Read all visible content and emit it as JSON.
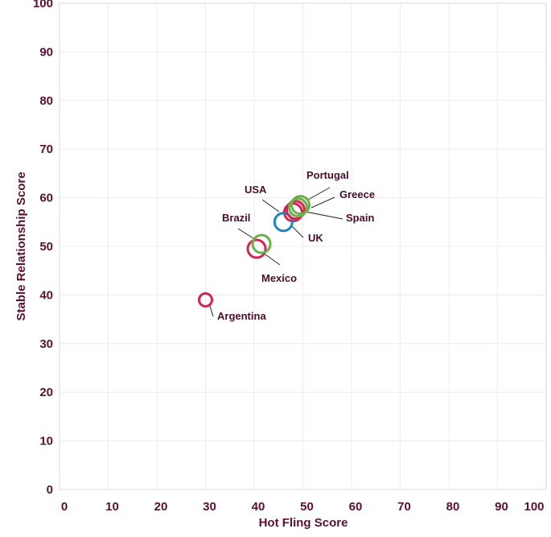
{
  "chart_data": {
    "type": "scatter",
    "xlabel": "Hot Fling Score",
    "ylabel": "Stable Relationship Score",
    "xlim": [
      0,
      100
    ],
    "ylim": [
      0,
      100
    ],
    "xticks": [
      0,
      10,
      20,
      30,
      40,
      50,
      60,
      70,
      80,
      90,
      100
    ],
    "yticks": [
      0,
      10,
      20,
      30,
      40,
      50,
      60,
      70,
      80,
      90,
      100
    ],
    "grid": true,
    "points": [
      {
        "label": "Argentina",
        "x": 30,
        "y": 39,
        "color": "#d6244e",
        "size": "small"
      },
      {
        "label": "Brazil",
        "x": 40.5,
        "y": 49.5,
        "color": "#d6244e",
        "size": "large"
      },
      {
        "label": "Mexico",
        "x": 41.5,
        "y": 50.5,
        "color": "#6ab04c",
        "size": "large"
      },
      {
        "label": "USA",
        "x": 48,
        "y": 57,
        "color": "#d6244e",
        "size": "large"
      },
      {
        "label": "UK",
        "x": 46,
        "y": 55,
        "color": "#1b87bf",
        "size": "large"
      },
      {
        "label": "Spain",
        "x": 48.5,
        "y": 57.5,
        "color": "#d6244e",
        "size": "large"
      },
      {
        "label": "Portugal",
        "x": 49.5,
        "y": 58.5,
        "color": "#6ab04c",
        "size": "large"
      },
      {
        "label": "Greece",
        "x": 49,
        "y": 58,
        "color": "#6ab04c",
        "size": "large"
      }
    ]
  }
}
